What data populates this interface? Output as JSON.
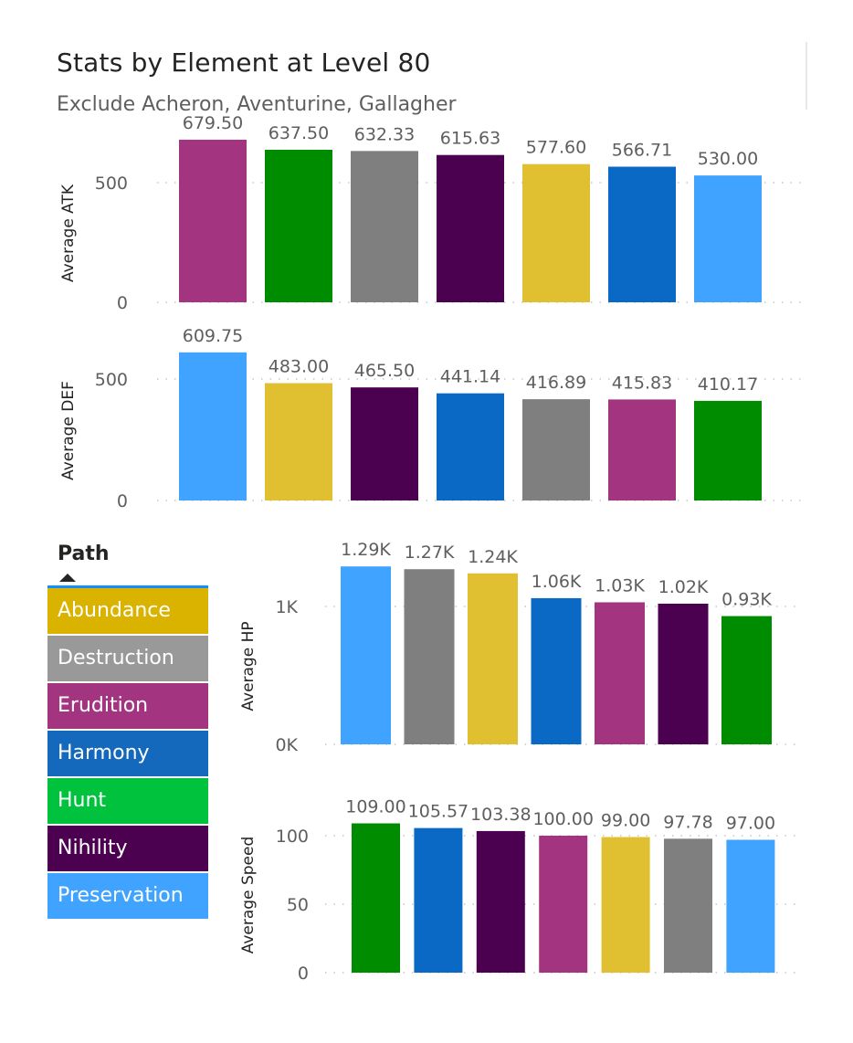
{
  "header": {
    "title": "Stats by Element at Level 80",
    "subtitle": "Exclude Acheron, Aventurine, Gallagher"
  },
  "legend": {
    "title": "Path",
    "items": [
      {
        "label": "Abundance",
        "color": "#d9b300"
      },
      {
        "label": "Destruction",
        "color": "#999999"
      },
      {
        "label": "Erudition",
        "color": "#a3347f"
      },
      {
        "label": "Harmony",
        "color": "#1469bc"
      },
      {
        "label": "Hunt",
        "color": "#00c23d"
      },
      {
        "label": "Nihility",
        "color": "#4b0050"
      },
      {
        "label": "Preservation",
        "color": "#40a3ff"
      }
    ]
  },
  "chart_data": [
    {
      "type": "bar",
      "ylabel": "Average ATK",
      "yticks": [
        0,
        500
      ],
      "ylim": [
        0,
        700
      ],
      "values": [
        679.5,
        637.5,
        632.33,
        615.63,
        577.6,
        566.71,
        530.0
      ],
      "labels": [
        "679.50",
        "637.50",
        "632.33",
        "615.63",
        "577.60",
        "566.71",
        "530.00"
      ],
      "tick_labels": [
        "0",
        "500"
      ],
      "colors": [
        "#a3347f",
        "#008c00",
        "#7f7f7f",
        "#4b0050",
        "#e0c030",
        "#0a69c4",
        "#40a3ff"
      ]
    },
    {
      "type": "bar",
      "ylabel": "Average DEF",
      "yticks": [
        0,
        500
      ],
      "ylim": [
        0,
        700
      ],
      "values": [
        609.75,
        483.0,
        465.5,
        441.14,
        416.89,
        415.83,
        410.17
      ],
      "labels": [
        "609.75",
        "483.00",
        "465.50",
        "441.14",
        "416.89",
        "415.83",
        "410.17"
      ],
      "tick_labels": [
        "0",
        "500"
      ],
      "colors": [
        "#40a3ff",
        "#e0c030",
        "#4b0050",
        "#0a69c4",
        "#7f7f7f",
        "#a3347f",
        "#008c00"
      ]
    },
    {
      "type": "bar",
      "ylabel": "Average HP",
      "yticks": [
        0,
        1000
      ],
      "ylim": [
        0,
        1400
      ],
      "values": [
        1290,
        1270,
        1240,
        1060,
        1030,
        1020,
        930
      ],
      "labels": [
        "1.29K",
        "1.27K",
        "1.24K",
        "1.06K",
        "1.03K",
        "1.02K",
        "0.93K"
      ],
      "tick_labels": [
        "0K",
        "1K"
      ],
      "colors": [
        "#40a3ff",
        "#7f7f7f",
        "#e0c030",
        "#0a69c4",
        "#a3347f",
        "#4b0050",
        "#008c00"
      ]
    },
    {
      "type": "bar",
      "ylabel": "Average Speed",
      "yticks": [
        0,
        50,
        100
      ],
      "ylim": [
        0,
        110
      ],
      "values": [
        109.0,
        105.57,
        103.38,
        100.0,
        99.0,
        97.78,
        97.0
      ],
      "labels": [
        "109.00",
        "105.57",
        "103.38",
        "100.00",
        "99.00",
        "97.78",
        "97.00"
      ],
      "tick_labels": [
        "0",
        "50",
        "100"
      ],
      "colors": [
        "#008c00",
        "#0a69c4",
        "#4b0050",
        "#a3347f",
        "#e0c030",
        "#7f7f7f",
        "#40a3ff"
      ]
    }
  ]
}
